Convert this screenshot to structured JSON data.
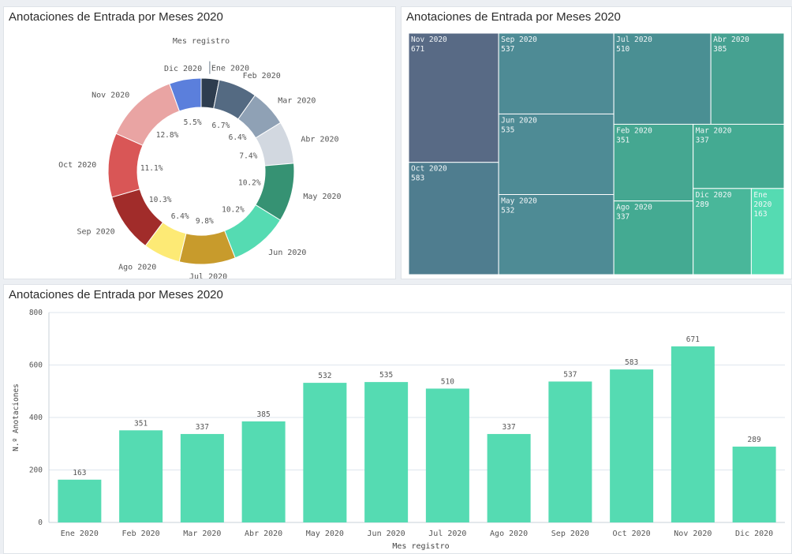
{
  "panels": {
    "donut_title": "Anotaciones de Entrada por Meses 2020",
    "treemap_title": "Anotaciones de Entrada por Meses 2020",
    "bar_title": "Anotaciones de Entrada por Meses 2020"
  },
  "colors": {
    "bar": "#55dbb2",
    "treemap_border": "#ffffff",
    "grid": "#dfe6ee"
  },
  "chart_data": [
    {
      "type": "pie",
      "title": "Anotaciones de Entrada por Meses 2020",
      "legend_title": "Mes registro",
      "donut": true,
      "slices": [
        {
          "label": "Ene 2020",
          "value": 163,
          "percent": "",
          "color": "#2e3d4f"
        },
        {
          "label": "Feb 2020",
          "value": 351,
          "percent": "6.7%",
          "color": "#546a82"
        },
        {
          "label": "Mar 2020",
          "value": 337,
          "percent": "6.4%",
          "color": "#8fa1b5"
        },
        {
          "label": "Abr 2020",
          "value": 385,
          "percent": "7.4%",
          "color": "#d2d8e0"
        },
        {
          "label": "May 2020",
          "value": 532,
          "percent": "10.2%",
          "color": "#369273"
        },
        {
          "label": "Jun 2020",
          "value": 535,
          "percent": "10.2%",
          "color": "#55dbb2"
        },
        {
          "label": "Jul 2020",
          "value": 510,
          "percent": "9.8%",
          "color": "#c89b2c"
        },
        {
          "label": "Ago 2020",
          "value": 337,
          "percent": "6.4%",
          "color": "#fdea75"
        },
        {
          "label": "Sep 2020",
          "value": 537,
          "percent": "10.3%",
          "color": "#a12c2a"
        },
        {
          "label": "Oct 2020",
          "value": 583,
          "percent": "11.1%",
          "color": "#d95656"
        },
        {
          "label": "Nov 2020",
          "value": 671,
          "percent": "12.8%",
          "color": "#e9a4a3"
        },
        {
          "label": "Dic 2020",
          "value": 289,
          "percent": "5.5%",
          "color": "#5b7fdc"
        }
      ]
    },
    {
      "type": "treemap",
      "title": "Anotaciones de Entrada por Meses 2020",
      "items": [
        {
          "label": "Nov 2020",
          "value": 671,
          "color": "#586a85"
        },
        {
          "label": "Oct 2020",
          "value": 583,
          "color": "#4f7d8f"
        },
        {
          "label": "Sep 2020",
          "value": 537,
          "color": "#4e8b95"
        },
        {
          "label": "Jun 2020",
          "value": 535,
          "color": "#4e8b95"
        },
        {
          "label": "May 2020",
          "value": 532,
          "color": "#4e8b95"
        },
        {
          "label": "Jul 2020",
          "value": 510,
          "color": "#4a8f93"
        },
        {
          "label": "Abr 2020",
          "value": 385,
          "color": "#46a191"
        },
        {
          "label": "Feb 2020",
          "value": 351,
          "color": "#45a791"
        },
        {
          "label": "Ago 2020",
          "value": 337,
          "color": "#44aa92"
        },
        {
          "label": "Mar 2020",
          "value": 337,
          "color": "#44aa92"
        },
        {
          "label": "Dic 2020",
          "value": 289,
          "color": "#49b79a"
        },
        {
          "label": "Ene 2020",
          "label_short": [
            "Ene",
            "2020"
          ],
          "value": 163,
          "color": "#55dbb2"
        }
      ]
    },
    {
      "type": "bar",
      "title": "Anotaciones de Entrada por Meses 2020",
      "xlabel": "Mes registro",
      "ylabel": "N.º Anotaciones",
      "ylim": [
        0,
        800
      ],
      "yticks": [
        0,
        200,
        400,
        600,
        800
      ],
      "categories": [
        "Ene 2020",
        "Feb 2020",
        "Mar 2020",
        "Abr 2020",
        "May 2020",
        "Jun 2020",
        "Jul 2020",
        "Ago 2020",
        "Sep 2020",
        "Oct 2020",
        "Nov 2020",
        "Dic 2020"
      ],
      "values": [
        163,
        351,
        337,
        385,
        532,
        535,
        510,
        337,
        537,
        583,
        671,
        289
      ]
    }
  ]
}
